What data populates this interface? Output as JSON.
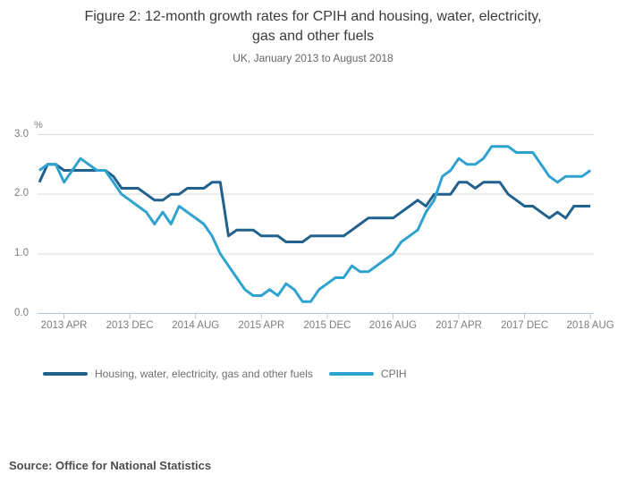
{
  "chart_data": {
    "type": "line",
    "title_line1": "Figure 2: 12-month growth rates for CPIH and housing, water, electricity,",
    "title_line2": "gas and other fuels",
    "subtitle": "UK, January 2013 to August 2018",
    "unit_label": "%",
    "x_start": "2013 JAN",
    "x_end": "2018 AUG",
    "x_month_count": 68,
    "x_ticks": [
      {
        "label": "2013 APR",
        "month": 3
      },
      {
        "label": "2013 DEC",
        "month": 11
      },
      {
        "label": "2014 AUG",
        "month": 19
      },
      {
        "label": "2015 APR",
        "month": 27
      },
      {
        "label": "2015 DEC",
        "month": 35
      },
      {
        "label": "2016 AUG",
        "month": 43
      },
      {
        "label": "2017 APR",
        "month": 51
      },
      {
        "label": "2017 DEC",
        "month": 59
      },
      {
        "label": "2018 AUG",
        "month": 67
      }
    ],
    "y_ticks": [
      {
        "label": "0.0",
        "value": 0.0
      },
      {
        "label": "1.0",
        "value": 1.0
      },
      {
        "label": "2.0",
        "value": 2.0
      },
      {
        "label": "3.0",
        "value": 3.0
      }
    ],
    "ylim": [
      0,
      3
    ],
    "grid": true,
    "legend_position": "bottom",
    "series": [
      {
        "name": "Housing, water, electricity, gas and other fuels",
        "color": "#21618e",
        "values": [
          2.2,
          2.5,
          2.5,
          2.4,
          2.4,
          2.4,
          2.4,
          2.4,
          2.4,
          2.3,
          2.1,
          2.1,
          2.1,
          2.0,
          1.9,
          1.9,
          2.0,
          2.0,
          2.1,
          2.1,
          2.1,
          2.2,
          2.2,
          1.3,
          1.4,
          1.4,
          1.4,
          1.3,
          1.3,
          1.3,
          1.2,
          1.2,
          1.2,
          1.3,
          1.3,
          1.3,
          1.3,
          1.3,
          1.4,
          1.5,
          1.6,
          1.6,
          1.6,
          1.6,
          1.7,
          1.8,
          1.9,
          1.8,
          2.0,
          2.0,
          2.0,
          2.2,
          2.2,
          2.1,
          2.2,
          2.2,
          2.2,
          2.0,
          1.9,
          1.8,
          1.8,
          1.7,
          1.6,
          1.7,
          1.6,
          1.8,
          1.8,
          1.8
        ]
      },
      {
        "name": "CPIH",
        "color": "#2ea3cf",
        "values": [
          2.4,
          2.5,
          2.5,
          2.2,
          2.4,
          2.6,
          2.5,
          2.4,
          2.4,
          2.2,
          2.0,
          1.9,
          1.8,
          1.7,
          1.5,
          1.7,
          1.5,
          1.8,
          1.7,
          1.6,
          1.5,
          1.3,
          1.0,
          0.8,
          0.6,
          0.4,
          0.3,
          0.3,
          0.4,
          0.3,
          0.5,
          0.4,
          0.2,
          0.2,
          0.4,
          0.5,
          0.6,
          0.6,
          0.8,
          0.7,
          0.7,
          0.8,
          0.9,
          1.0,
          1.2,
          1.3,
          1.4,
          1.7,
          1.9,
          2.3,
          2.4,
          2.6,
          2.5,
          2.5,
          2.6,
          2.8,
          2.8,
          2.8,
          2.7,
          2.7,
          2.7,
          2.5,
          2.3,
          2.2,
          2.3,
          2.3,
          2.3,
          2.4
        ]
      }
    ],
    "colors": {
      "gridline": "#d9d9d9",
      "axis_line": "#b5c8d6"
    }
  },
  "source": {
    "label": "Source: Office for National Statistics"
  }
}
